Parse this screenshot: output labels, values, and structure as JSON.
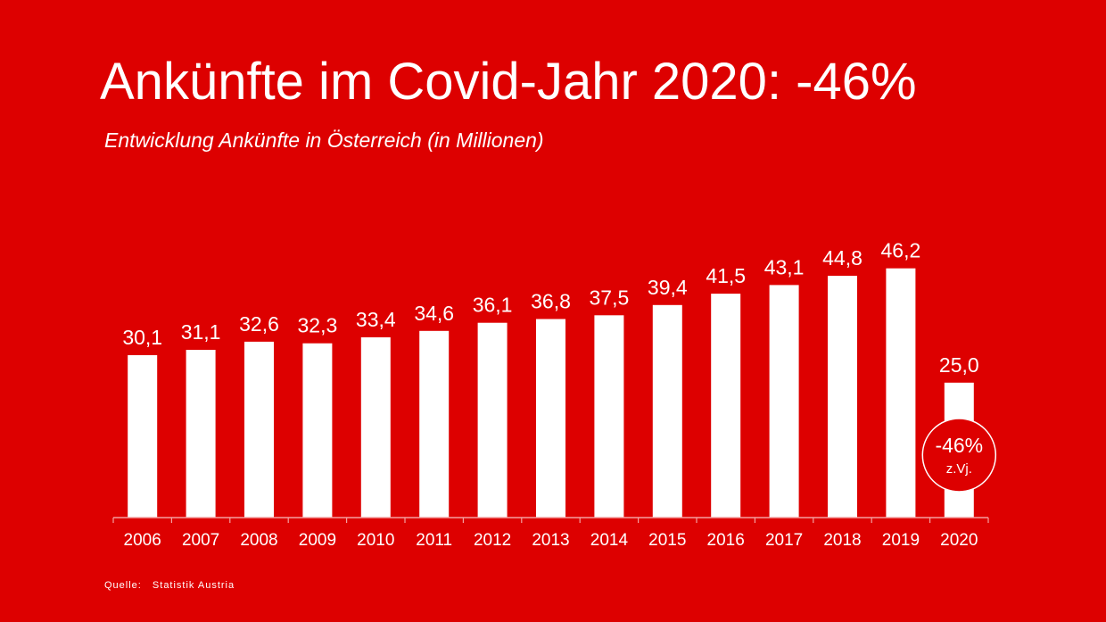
{
  "header": {
    "title": "Ankünfte im Covid-Jahr 2020: -46%",
    "subtitle": "Entwicklung Ankünfte in Österreich (in Millionen)"
  },
  "footer": {
    "source_label": "Quelle:",
    "source_value": "Statistik Austria"
  },
  "colors": {
    "background": "#dd0000",
    "bars": "#ffffff",
    "text": "#ffffff",
    "axis": "#f4a0a0"
  },
  "chart_data": {
    "type": "bar",
    "title": "Ankünfte im Covid-Jahr 2020: -46%",
    "subtitle": "Entwicklung Ankünfte in Österreich (in Millionen)",
    "xlabel": "",
    "ylabel": "",
    "grid": false,
    "legend": "none",
    "categories": [
      "2006",
      "2007",
      "2008",
      "2009",
      "2010",
      "2011",
      "2012",
      "2013",
      "2014",
      "2015",
      "2016",
      "2017",
      "2018",
      "2019",
      "2020"
    ],
    "values": [
      30.1,
      31.1,
      32.6,
      32.3,
      33.4,
      34.6,
      36.1,
      36.8,
      37.5,
      39.4,
      41.5,
      43.1,
      44.8,
      46.2,
      25.0
    ],
    "data_labels": [
      "30,1",
      "31,1",
      "32,6",
      "32,3",
      "33,4",
      "34,6",
      "36,1",
      "36,8",
      "37,5",
      "39,4",
      "41,5",
      "43,1",
      "44,8",
      "46,2",
      "25,0"
    ],
    "annotation": {
      "category": "2020",
      "text": "-46%",
      "subtext": "z.Vj."
    }
  }
}
